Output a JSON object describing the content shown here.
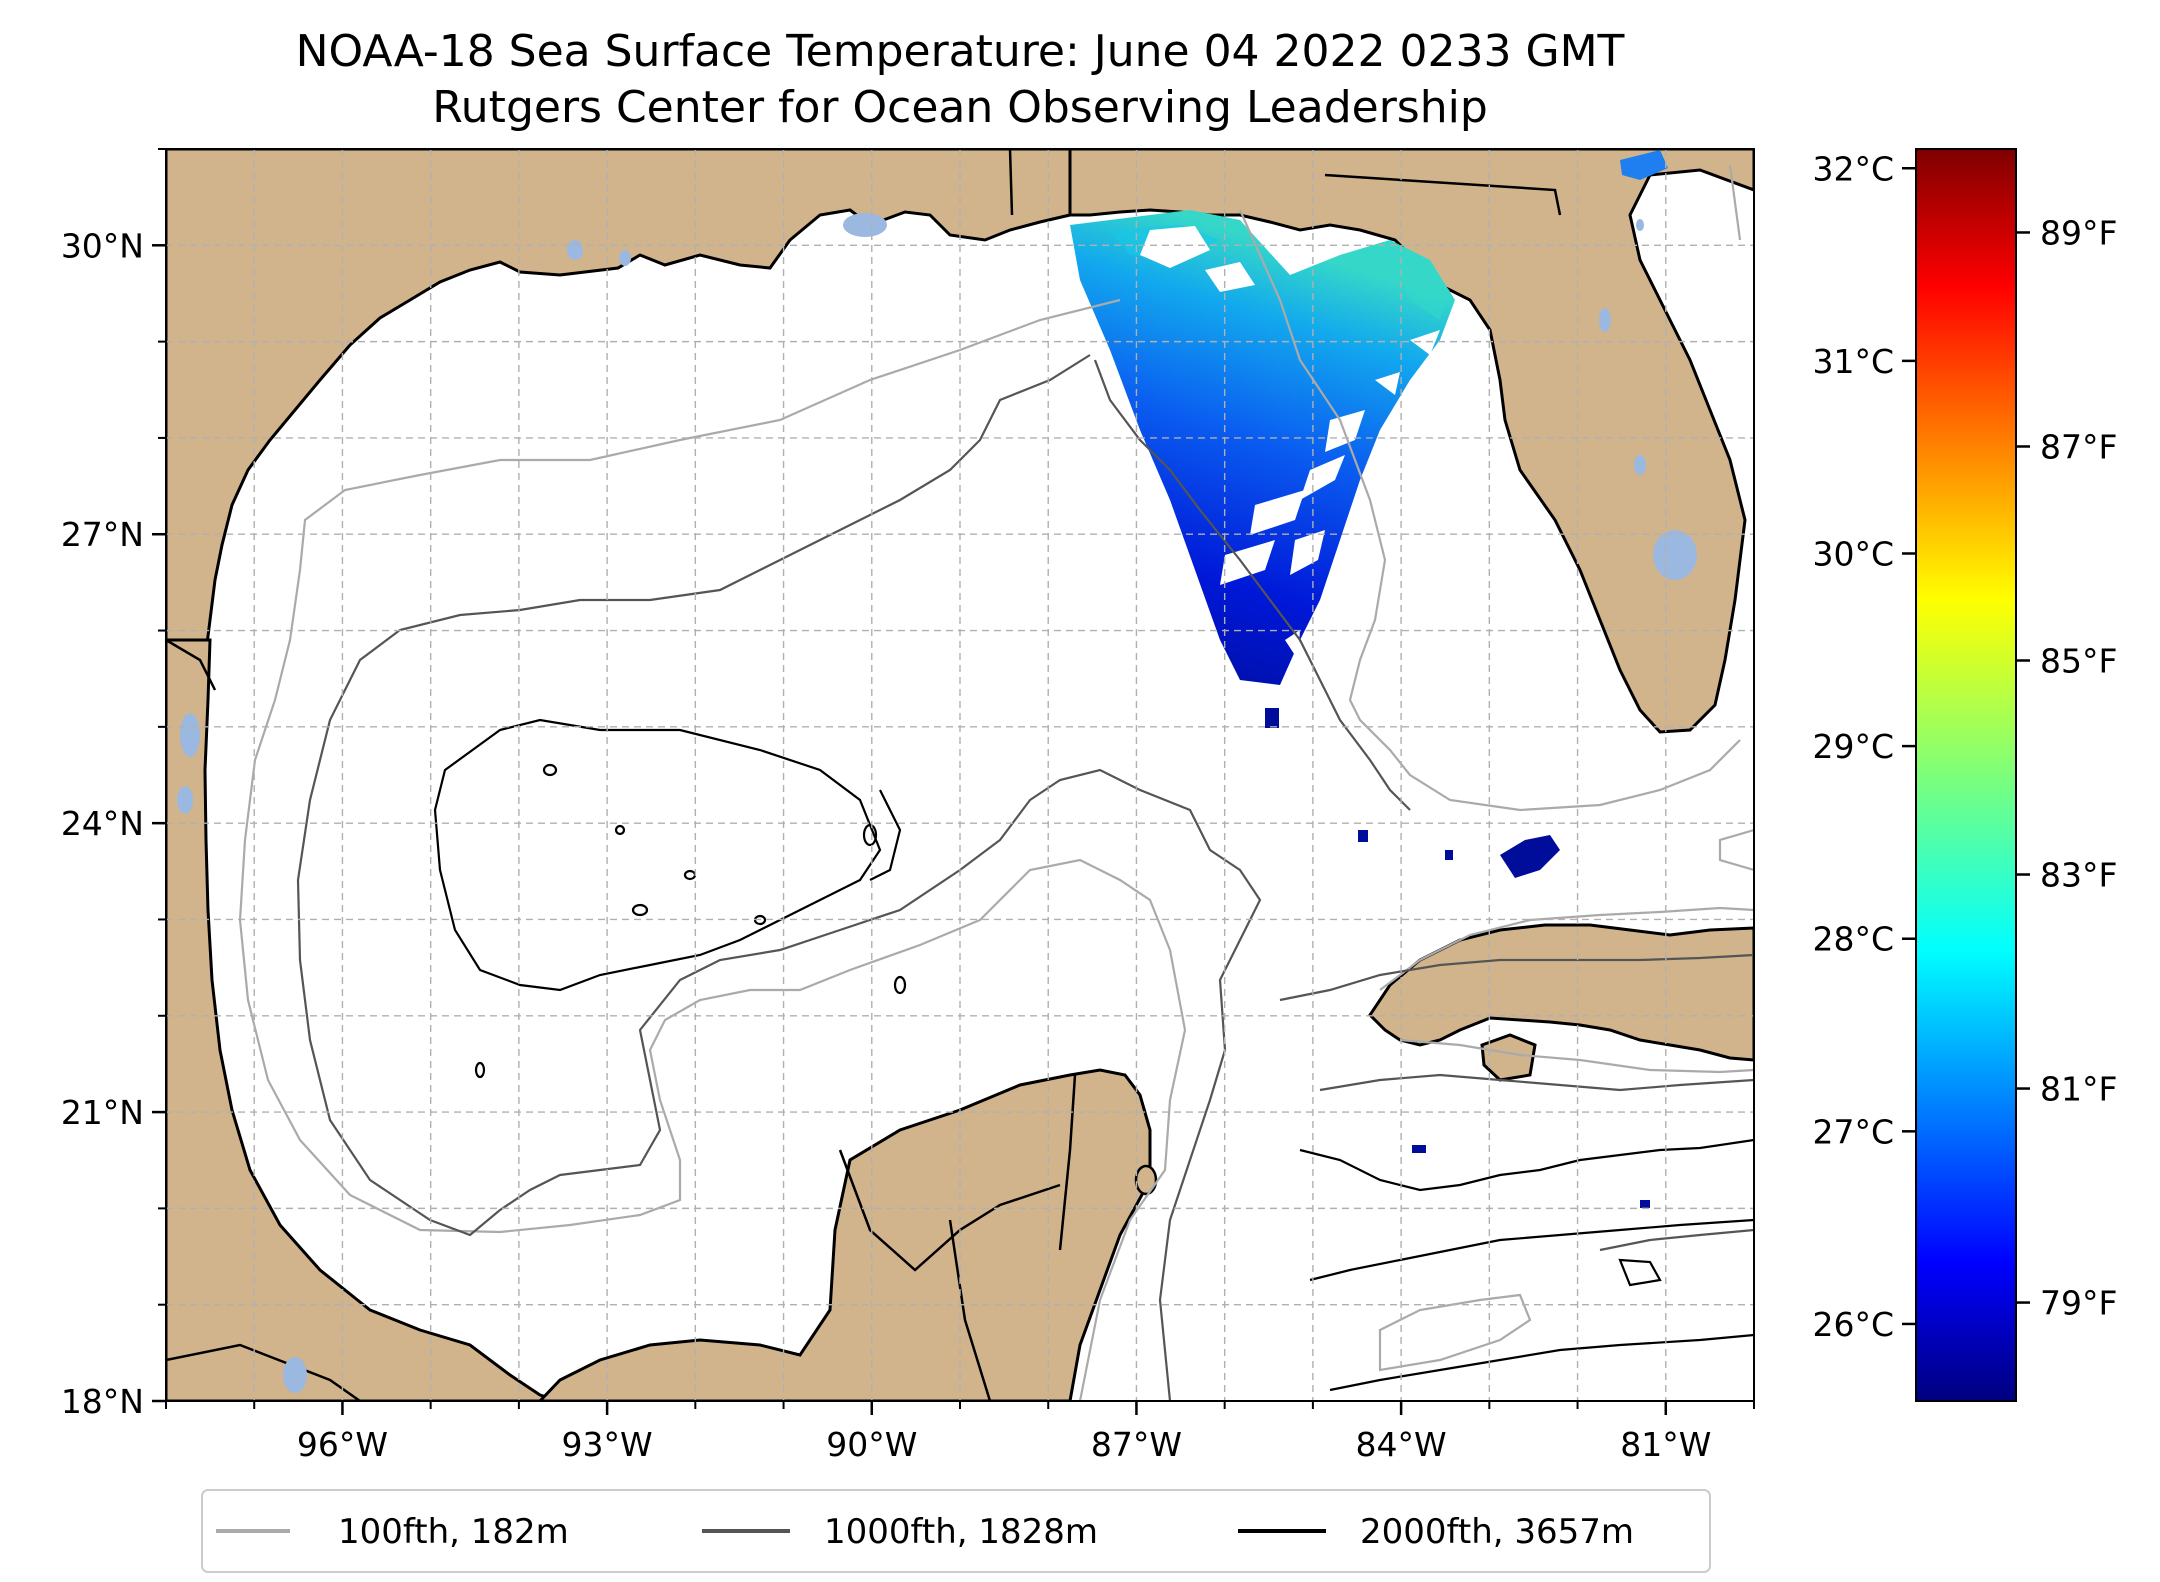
{
  "title": "NOAA-18 Sea Surface Temperature: June 04 2022 0233 GMT",
  "subtitle": "Rutgers Center for Ocean Observing Leadership",
  "map": {
    "lon_range": [
      -98.0,
      -80.0
    ],
    "lat_range": [
      18.0,
      31.0
    ],
    "lon_ticks": [
      {
        "value": -96,
        "label": "96°W"
      },
      {
        "value": -93,
        "label": "93°W"
      },
      {
        "value": -90,
        "label": "90°W"
      },
      {
        "value": -87,
        "label": "87°W"
      },
      {
        "value": -84,
        "label": "84°W"
      },
      {
        "value": -81,
        "label": "81°W"
      }
    ],
    "lat_ticks": [
      {
        "value": 18,
        "label": "18°N"
      },
      {
        "value": 21,
        "label": "21°N"
      },
      {
        "value": 24,
        "label": "24°N"
      },
      {
        "value": 27,
        "label": "27°N"
      },
      {
        "value": 30,
        "label": "30°N"
      }
    ],
    "grid": "dashed",
    "colors": {
      "land": "#d2b48c",
      "lakes": "#9ab8e0",
      "ocean": "#ffffff"
    }
  },
  "legend": {
    "placement": "bottom",
    "entries": [
      {
        "label": "100fth, 182m",
        "color": "#aaaaaa"
      },
      {
        "label": "1000fth, 1828m",
        "color": "#555555"
      },
      {
        "label": "2000fth, 3657m",
        "color": "#000000"
      }
    ]
  },
  "colorbar": {
    "colormap": "jet",
    "celsius_range": [
      25.6,
      32.1
    ],
    "celsius_ticks": [
      {
        "value": 26,
        "label": "26°C"
      },
      {
        "value": 27,
        "label": "27°C"
      },
      {
        "value": 28,
        "label": "28°C"
      },
      {
        "value": 29,
        "label": "29°C"
      },
      {
        "value": 30,
        "label": "30°C"
      },
      {
        "value": 31,
        "label": "31°C"
      },
      {
        "value": 32,
        "label": "32°C"
      }
    ],
    "fahrenheit_ticks": [
      {
        "value": 79,
        "label": "79°F"
      },
      {
        "value": 81,
        "label": "81°F"
      },
      {
        "value": 83,
        "label": "83°F"
      },
      {
        "value": 85,
        "label": "85°F"
      },
      {
        "value": 87,
        "label": "87°F"
      },
      {
        "value": 89,
        "label": "89°F"
      }
    ]
  }
}
